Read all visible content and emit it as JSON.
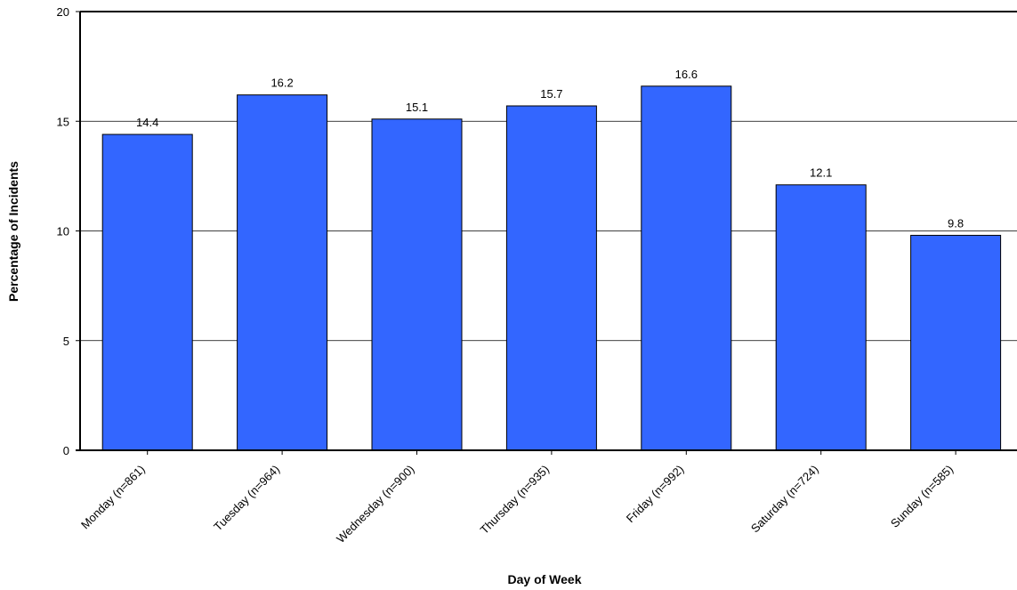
{
  "chart_data": {
    "type": "bar",
    "title": "",
    "xlabel": "Day of Week",
    "ylabel": "Percentage of Incidents",
    "categories": [
      "Monday (n=861)",
      "Tuesday (n=964)",
      "Wednesday (n=900)",
      "Thursday (n=935)",
      "Friday (n=992)",
      "Saturday (n=724)",
      "Sunday (n=585)"
    ],
    "values": [
      14.4,
      16.2,
      15.1,
      15.7,
      16.6,
      12.1,
      9.8
    ],
    "data_labels": [
      "14.4",
      "16.2",
      "15.1",
      "15.7",
      "16.6",
      "12.1",
      "9.8"
    ],
    "ylim": [
      0,
      20
    ],
    "yticks": [
      0,
      5,
      10,
      15,
      20
    ],
    "grid": true,
    "legend": "none",
    "bar_color": "#3366FF",
    "bar_edge_color": "#000000"
  }
}
